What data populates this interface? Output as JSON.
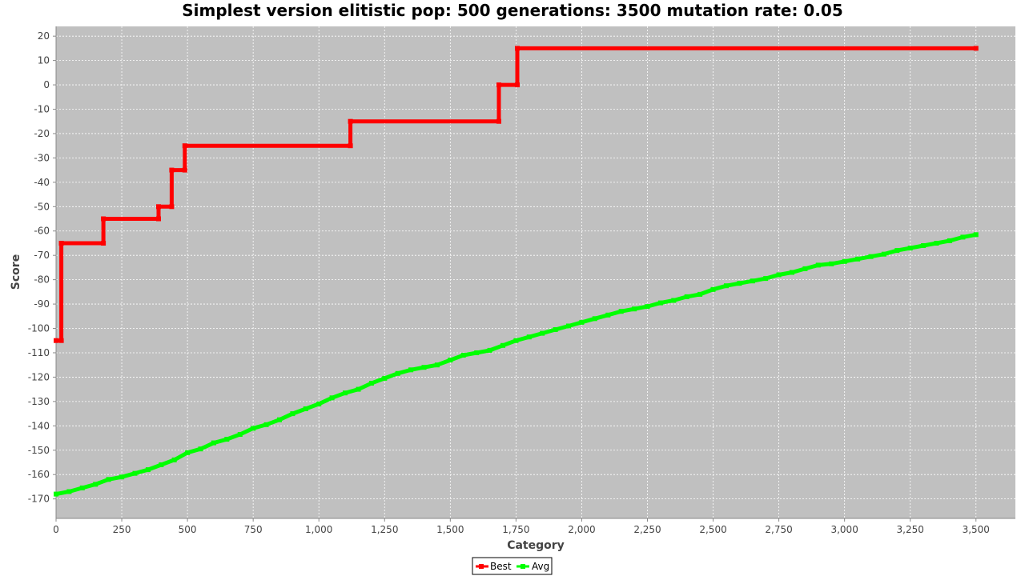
{
  "chart_data": {
    "type": "line",
    "title": "Simplest version elitistic pop: 500 generations: 3500 mutation rate: 0.05",
    "xlabel": "Category",
    "ylabel": "Score",
    "xlim": [
      0,
      3650
    ],
    "ylim": [
      -178,
      24
    ],
    "x_ticks": [
      "0",
      "250",
      "500",
      "750",
      "1,000",
      "1,250",
      "1,500",
      "1,750",
      "2,000",
      "2,250",
      "2,500",
      "2,750",
      "3,000",
      "3,250",
      "3,500"
    ],
    "y_ticks": [
      "20",
      "10",
      "0",
      "-10",
      "-20",
      "-30",
      "-40",
      "-50",
      "-60",
      "-70",
      "-80",
      "-90",
      "-100",
      "-110",
      "-120",
      "-130",
      "-140",
      "-150",
      "-160",
      "-170"
    ],
    "grid": true,
    "background_color": "#c0c0c0",
    "legend_position": "bottom-center",
    "series": [
      {
        "name": "Best",
        "color": "#ff0000",
        "step": true,
        "points": [
          [
            0,
            -105
          ],
          [
            20,
            -105
          ],
          [
            20,
            -65
          ],
          [
            180,
            -65
          ],
          [
            180,
            -55
          ],
          [
            390,
            -55
          ],
          [
            390,
            -50
          ],
          [
            440,
            -50
          ],
          [
            440,
            -35
          ],
          [
            490,
            -35
          ],
          [
            490,
            -25
          ],
          [
            1120,
            -25
          ],
          [
            1120,
            -15
          ],
          [
            1685,
            -15
          ],
          [
            1685,
            0
          ],
          [
            1755,
            0
          ],
          [
            1755,
            15
          ],
          [
            3500,
            15
          ]
        ]
      },
      {
        "name": "Avg",
        "color": "#00ff00",
        "step": false,
        "points": [
          [
            0,
            -168
          ],
          [
            50,
            -167
          ],
          [
            100,
            -165.5
          ],
          [
            150,
            -164
          ],
          [
            200,
            -162
          ],
          [
            250,
            -161
          ],
          [
            300,
            -159.5
          ],
          [
            350,
            -158
          ],
          [
            400,
            -156
          ],
          [
            450,
            -154
          ],
          [
            500,
            -151
          ],
          [
            550,
            -149.5
          ],
          [
            600,
            -147
          ],
          [
            650,
            -145.5
          ],
          [
            700,
            -143.5
          ],
          [
            750,
            -141
          ],
          [
            800,
            -139.5
          ],
          [
            850,
            -137.5
          ],
          [
            900,
            -135
          ],
          [
            950,
            -133
          ],
          [
            1000,
            -131
          ],
          [
            1050,
            -128.5
          ],
          [
            1100,
            -126.5
          ],
          [
            1150,
            -125
          ],
          [
            1200,
            -122.5
          ],
          [
            1250,
            -120.5
          ],
          [
            1300,
            -118.5
          ],
          [
            1350,
            -117
          ],
          [
            1400,
            -116
          ],
          [
            1450,
            -115
          ],
          [
            1500,
            -113
          ],
          [
            1550,
            -111
          ],
          [
            1600,
            -110
          ],
          [
            1650,
            -109
          ],
          [
            1700,
            -107
          ],
          [
            1750,
            -105
          ],
          [
            1800,
            -103.5
          ],
          [
            1850,
            -102
          ],
          [
            1900,
            -100.5
          ],
          [
            1950,
            -99
          ],
          [
            2000,
            -97.5
          ],
          [
            2050,
            -96
          ],
          [
            2100,
            -94.5
          ],
          [
            2150,
            -93
          ],
          [
            2200,
            -92
          ],
          [
            2250,
            -91
          ],
          [
            2300,
            -89.5
          ],
          [
            2350,
            -88.5
          ],
          [
            2400,
            -87
          ],
          [
            2450,
            -86
          ],
          [
            2500,
            -84
          ],
          [
            2550,
            -82.5
          ],
          [
            2600,
            -81.5
          ],
          [
            2650,
            -80.5
          ],
          [
            2700,
            -79.5
          ],
          [
            2750,
            -78
          ],
          [
            2800,
            -77
          ],
          [
            2850,
            -75.5
          ],
          [
            2900,
            -74
          ],
          [
            2950,
            -73.5
          ],
          [
            3000,
            -72.5
          ],
          [
            3050,
            -71.5
          ],
          [
            3100,
            -70.5
          ],
          [
            3150,
            -69.5
          ],
          [
            3200,
            -68
          ],
          [
            3250,
            -67
          ],
          [
            3300,
            -66
          ],
          [
            3350,
            -65
          ],
          [
            3400,
            -64
          ],
          [
            3450,
            -62.5
          ],
          [
            3500,
            -61.5
          ]
        ]
      }
    ]
  }
}
